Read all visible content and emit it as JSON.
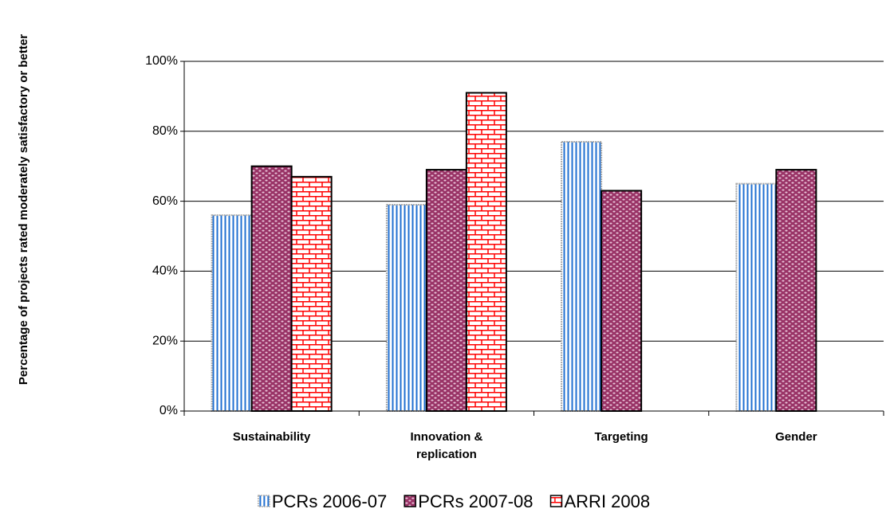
{
  "chart_data": {
    "type": "bar",
    "y_label": "Percentage of projects rated moderately satisfactory or better",
    "categories": [
      "Sustainability",
      "Innovation & replication",
      "Targeting",
      "Gender"
    ],
    "series": [
      {
        "name": "PCRs 2006-07",
        "color": "#1f6fd1",
        "values": [
          56,
          59,
          77,
          65
        ]
      },
      {
        "name": "PCRs 2007-08",
        "color": "#993366",
        "values": [
          70,
          69,
          63,
          69
        ]
      },
      {
        "name": "ARRI 2008",
        "color": "#ff0000",
        "values": [
          67,
          91,
          null,
          null
        ]
      }
    ],
    "ylim": [
      0,
      100
    ],
    "yticks": [
      {
        "value": 0,
        "label": "0%"
      },
      {
        "value": 20,
        "label": "20%"
      },
      {
        "value": 40,
        "label": "40%"
      },
      {
        "value": 60,
        "label": "60%"
      },
      {
        "value": 80,
        "label": "80%"
      },
      {
        "value": 100,
        "label": "100%"
      }
    ],
    "grid": true
  }
}
